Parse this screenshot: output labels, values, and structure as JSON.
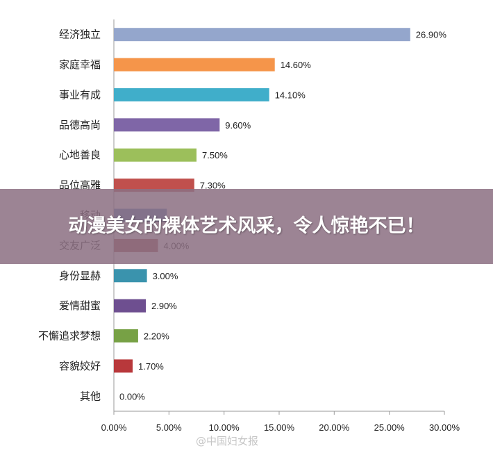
{
  "chart_data": {
    "type": "bar",
    "orientation": "horizontal",
    "categories": [
      "经济独立",
      "家庭幸福",
      "事业有成",
      "品德高尚",
      "心地善良",
      "品位高雅",
      "移动",
      "交友广泛",
      "身份显赫",
      "爱情甜蜜",
      "不懈追求梦想",
      "容貌姣好",
      "其他"
    ],
    "values": [
      26.9,
      14.6,
      14.1,
      9.6,
      7.5,
      7.3,
      4.8,
      4.0,
      3.0,
      2.9,
      2.2,
      1.7,
      0.0
    ],
    "data_labels": [
      "26.90%",
      "14.60%",
      "14.10%",
      "9.60%",
      "7.50%",
      "7.30%",
      "",
      "4.00%",
      "3.00%",
      "2.90%",
      "2.20%",
      "1.70%",
      "0.00%"
    ],
    "colors": [
      "#94A6CC",
      "#F5954A",
      "#40AECA",
      "#7F66A7",
      "#9CBF5B",
      "#C0504D",
      "#4F81BD",
      "#A0524F",
      "#3A93AD",
      "#6E4F90",
      "#77A145",
      "#B8383B",
      "#999999"
    ],
    "xlim": [
      0,
      30
    ],
    "xticks": [
      "0.00%",
      "5.00%",
      "10.00%",
      "15.00%",
      "20.00%",
      "25.00%",
      "30.00%"
    ],
    "grid": false
  },
  "overlay": {
    "text": "动漫美女的裸体艺术风采，令人惊艳不已！"
  },
  "watermark": {
    "text": "@中国妇女报"
  }
}
